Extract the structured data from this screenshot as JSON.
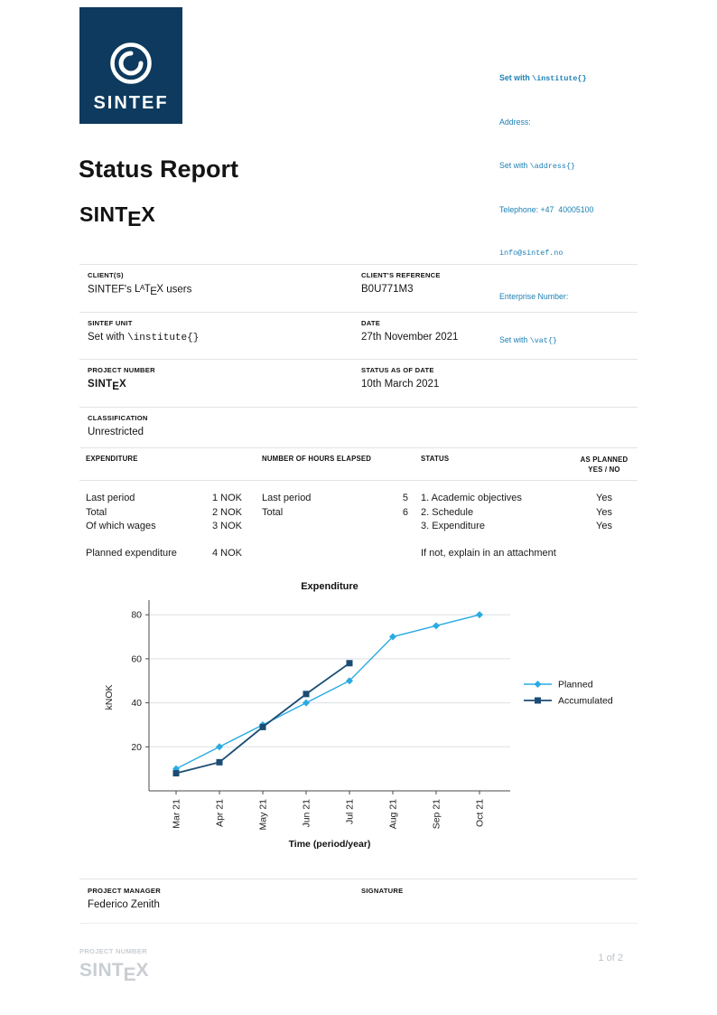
{
  "colors": {
    "brand_navy": "#0d3a5e",
    "accent_blue": "#1d80b4",
    "chart_planned": "#29abe2",
    "chart_accumulated": "#1b4c74",
    "separator_grey": "#e3e3e3",
    "footer_grey": "#c9ced3"
  },
  "logo": {
    "text": "SINTEF"
  },
  "contact": {
    "line1_pre": "Set with ",
    "line1_code": "\\institute{}",
    "address_label": "Address:",
    "address_pre": "Set with ",
    "address_code": "\\address{}",
    "telephone": "Telephone: +47  40005100",
    "email": "info@sintef.no",
    "enterprise_label": "Enterprise Number:",
    "vat_pre": "Set with ",
    "vat_code": "\\vat{}"
  },
  "title": "Status Report",
  "doc_logo": {
    "pre": "SINT",
    "e": "E",
    "x": "X"
  },
  "info": {
    "rows": [
      {
        "l_label": "CLIENT(S)",
        "l_parts": {
          "pre": "SINTEF's ",
          "L": "L",
          "A": "A",
          "T": "T",
          "E": "E",
          "X": "X",
          "post": " users"
        },
        "r_label": "CLIENT'S REFERENCE",
        "r_value": "B0U771M3"
      },
      {
        "l_label": "SINTEF UNIT",
        "l_pre": "Set with ",
        "l_code": "\\institute{}",
        "r_label": "DATE",
        "r_value": "27th November 2021"
      },
      {
        "l_label": "PROJECT NUMBER",
        "l_parts": {
          "pre": "SINT",
          "e": "E",
          "x": "X"
        },
        "r_label": "STATUS AS OF DATE",
        "r_value": "10th March 2021"
      },
      {
        "l_label": "CLASSIFICATION",
        "l_value": "Unrestricted"
      }
    ]
  },
  "exptable": {
    "h1": "EXPENDITURE",
    "h2": "NUMBER OF HOURS ELAPSED",
    "h3": "STATUS",
    "h4a": "AS PLANNED",
    "h4b": "YES / NO",
    "exp_rows": [
      {
        "label": "Last period",
        "value": "1 NOK"
      },
      {
        "label": "Total",
        "value": "2 NOK"
      },
      {
        "label": "Of which wages",
        "value": "3 NOK"
      }
    ],
    "exp_planned": {
      "label": "Planned expenditure",
      "value": "4 NOK"
    },
    "hours_rows": [
      {
        "label": "Last period",
        "value": "5"
      },
      {
        "label": "Total",
        "value": "6"
      }
    ],
    "status_rows": [
      {
        "label": "1. Academic objectives",
        "value": "Yes"
      },
      {
        "label": "2. Schedule",
        "value": "Yes"
      },
      {
        "label": "3. Expenditure",
        "value": "Yes"
      }
    ],
    "status_note": "If not, explain in an attachment"
  },
  "chart_data": {
    "type": "line",
    "title": "Expenditure",
    "xlabel": "Time (period/year)",
    "ylabel": "kNOK",
    "categories": [
      "Mar 21",
      "Apr 21",
      "May 21",
      "Jun 21",
      "Jul 21",
      "Aug 21",
      "Sep 21",
      "Oct 21"
    ],
    "series": [
      {
        "name": "Planned",
        "color": "#29abe2",
        "marker": "diamond",
        "values": [
          10,
          20,
          30,
          40,
          50,
          70,
          75,
          80
        ]
      },
      {
        "name": "Accumulated",
        "color": "#1b4c74",
        "marker": "square",
        "values": [
          8,
          13,
          29,
          44,
          58
        ]
      }
    ],
    "ylim": [
      0,
      85
    ],
    "yticks": [
      20,
      40,
      60,
      80
    ],
    "grid": true,
    "legend_position": "right"
  },
  "signature": {
    "manager_label": "PROJECT MANAGER",
    "manager_name": "Federico Zenith",
    "signature_label": "SIGNATURE"
  },
  "footer": {
    "label": "PROJECT NUMBER",
    "project_parts": {
      "pre": "SINT",
      "e": "E",
      "x": "X"
    },
    "page": "1 of 2"
  }
}
